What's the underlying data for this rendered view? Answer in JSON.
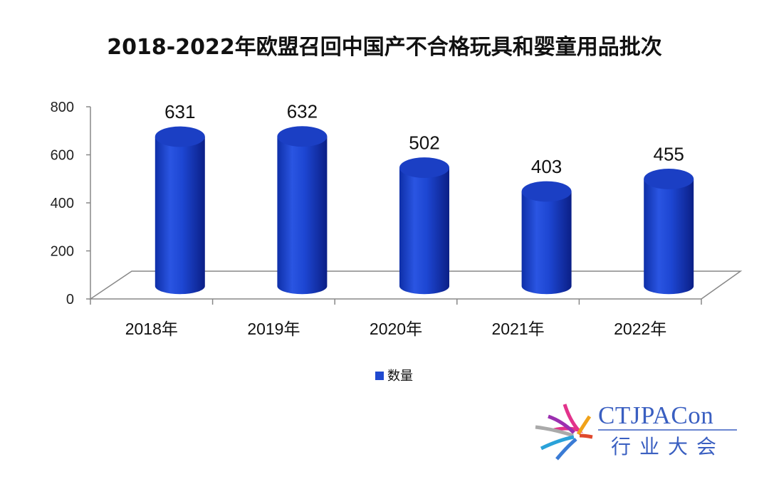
{
  "chart_data": {
    "type": "bar",
    "title": "2018-2022年欧盟召回中国产不合格玩具和婴童用品批次",
    "categories": [
      "2018年",
      "2019年",
      "2020年",
      "2021年",
      "2022年"
    ],
    "series": [
      {
        "name": "数量",
        "values": [
          631,
          632,
          502,
          403,
          455
        ],
        "color": "#1f49d0"
      }
    ],
    "data_labels": [
      "631",
      "632",
      "502",
      "403",
      "455"
    ],
    "yticks": [
      "0",
      "200",
      "400",
      "600",
      "800"
    ],
    "ylim": [
      0,
      800
    ],
    "grid": false,
    "legend_position": "bottom",
    "style": "3d-cylinder"
  },
  "logo": {
    "name": "CTJPACon",
    "subtitle": "行业大会",
    "color": "#3a5fc1"
  }
}
